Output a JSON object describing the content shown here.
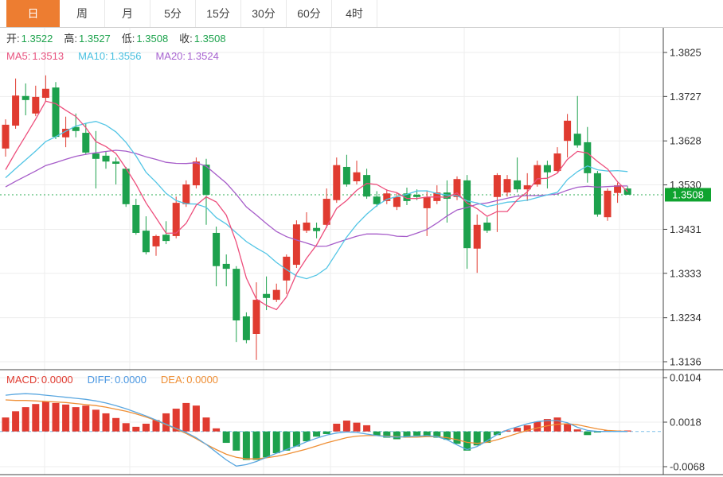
{
  "tabbar": {
    "tabs": [
      {
        "id": "day",
        "label": "日",
        "active": true
      },
      {
        "id": "week",
        "label": "周",
        "active": false
      },
      {
        "id": "month",
        "label": "月",
        "active": false
      },
      {
        "id": "5min",
        "label": "5分",
        "active": false
      },
      {
        "id": "15min",
        "label": "15分",
        "active": false
      },
      {
        "id": "30min",
        "label": "30分",
        "active": false
      },
      {
        "id": "60min",
        "label": "60分",
        "active": false
      },
      {
        "id": "4hour",
        "label": "4时",
        "active": false
      }
    ]
  },
  "main_overlay": {
    "ohlc": [
      {
        "label": "开:",
        "value": "1.3522",
        "color": "#1ba24b"
      },
      {
        "label": "高:",
        "value": "1.3527",
        "color": "#1ba24b"
      },
      {
        "label": "低:",
        "value": "1.3508",
        "color": "#1ba24b"
      },
      {
        "label": "收:",
        "value": "1.3508",
        "color": "#1ba24b"
      }
    ],
    "ma_legend": [
      {
        "label": "MA5:",
        "value": "1.3513",
        "color": "#e8537f"
      },
      {
        "label": "MA10:",
        "value": "1.3556",
        "color": "#49c0e0"
      },
      {
        "label": "MA20:",
        "value": "1.3524",
        "color": "#a763d0"
      }
    ]
  },
  "macd_overlay": [
    {
      "label": "MACD:",
      "value": "0.0000",
      "color": "#e03b30"
    },
    {
      "label": "DIFF:",
      "value": "0.0000",
      "color": "#4a97e2"
    },
    {
      "label": "DEA:",
      "value": "0.0000",
      "color": "#ef8f35"
    }
  ],
  "colors": {
    "up": "#e03b30",
    "down": "#1da14d",
    "badge": "#0fa32f",
    "ma5": "#ed4e7c",
    "ma10": "#52c5e5",
    "ma20": "#a65cc9",
    "diff": "#5aa7e0",
    "dea": "#ef8f35",
    "grid": "#ededed",
    "frame": "#444444",
    "axis_text": "#333333",
    "price_line": "#2fae54",
    "zero_line": "#7fc0e8",
    "tab_active": "#ed7d31"
  },
  "chart_data": {
    "type": "candlestick+macd",
    "title": "",
    "price_axis": {
      "ticks": [
        1.3825,
        1.3727,
        1.3628,
        1.353,
        1.3431,
        1.3333,
        1.3234,
        1.3136
      ],
      "range": [
        1.3136,
        1.3825
      ],
      "current_price": 1.3508,
      "current_price_label": "1.3508"
    },
    "macd_axis": {
      "ticks": [
        0.0104,
        0.0018,
        -0.0068
      ],
      "range": [
        -0.0068,
        0.0104
      ]
    },
    "x_gridlines": [
      56,
      163,
      331,
      415,
      583,
      778
    ],
    "legend": {
      "ma5": 1.3513,
      "ma10": 1.3556,
      "ma20": 1.3524,
      "macd": 0.0,
      "diff": 0.0,
      "dea": 0.0
    },
    "ohlc_latest": {
      "open": 1.3522,
      "high": 1.3527,
      "low": 1.3508,
      "close": 1.3508
    },
    "prehistory_closes": [
      1.347,
      1.348,
      1.349,
      1.3495,
      1.35,
      1.3505,
      1.351,
      1.3515,
      1.3515,
      1.352,
      1.352,
      1.3525,
      1.3525,
      1.353,
      1.353,
      1.353,
      1.3535,
      1.3535,
      1.354,
      1.3545
    ],
    "candles": [
      [
        1.3611,
        1.3676,
        1.3593,
        1.3664
      ],
      [
        1.3662,
        1.3767,
        1.3655,
        1.3729
      ],
      [
        1.3728,
        1.3756,
        1.3685,
        1.3719
      ],
      [
        1.3689,
        1.3751,
        1.3683,
        1.3726
      ],
      [
        1.3724,
        1.3774,
        1.3717,
        1.3744
      ],
      [
        1.3747,
        1.3759,
        1.3632,
        1.3637
      ],
      [
        1.3636,
        1.3682,
        1.3614,
        1.3655
      ],
      [
        1.3659,
        1.3689,
        1.3636,
        1.365
      ],
      [
        1.3646,
        1.3667,
        1.3597,
        1.3602
      ],
      [
        1.36,
        1.365,
        1.3522,
        1.3588
      ],
      [
        1.3595,
        1.3605,
        1.3566,
        1.3582
      ],
      [
        1.3582,
        1.3591,
        1.3531,
        1.3577
      ],
      [
        1.3566,
        1.357,
        1.3481,
        1.3487
      ],
      [
        1.3485,
        1.3499,
        1.3419,
        1.3423
      ],
      [
        1.3428,
        1.346,
        1.3375,
        1.338
      ],
      [
        1.3393,
        1.3419,
        1.3372,
        1.3416
      ],
      [
        1.3419,
        1.3449,
        1.3398,
        1.3405
      ],
      [
        1.3416,
        1.3504,
        1.3411,
        1.349
      ],
      [
        1.3487,
        1.354,
        1.3481,
        1.3531
      ],
      [
        1.3529,
        1.3591,
        1.3522,
        1.3582
      ],
      [
        1.3575,
        1.3588,
        1.3441,
        1.3508
      ],
      [
        1.3423,
        1.3437,
        1.3304,
        1.3349
      ],
      [
        1.3354,
        1.3375,
        1.3304,
        1.3343
      ],
      [
        1.3343,
        1.3349,
        1.318,
        1.3228
      ],
      [
        1.3237,
        1.3246,
        1.3177,
        1.3184
      ],
      [
        1.3198,
        1.3313,
        1.314,
        1.3274
      ],
      [
        1.3287,
        1.3326,
        1.3251,
        1.3278
      ],
      [
        1.3274,
        1.331,
        1.3269,
        1.3296
      ],
      [
        1.3317,
        1.3375,
        1.3287,
        1.337
      ],
      [
        1.3352,
        1.3451,
        1.3345,
        1.3442
      ],
      [
        1.3428,
        1.3469,
        1.3423,
        1.3446
      ],
      [
        1.3434,
        1.3446,
        1.3411,
        1.3427
      ],
      [
        1.3441,
        1.3522,
        1.3434,
        1.3499
      ],
      [
        1.3496,
        1.3591,
        1.349,
        1.3574
      ],
      [
        1.357,
        1.3597,
        1.3526,
        1.3531
      ],
      [
        1.3538,
        1.3584,
        1.3531,
        1.3558
      ],
      [
        1.3552,
        1.3566,
        1.3499,
        1.3504
      ],
      [
        1.3504,
        1.3516,
        1.3481,
        1.3487
      ],
      [
        1.3494,
        1.352,
        1.3487,
        1.3511
      ],
      [
        1.3481,
        1.3513,
        1.3474,
        1.3503
      ],
      [
        1.3511,
        1.3524,
        1.3485,
        1.3494
      ],
      [
        1.3508,
        1.352,
        1.3496,
        1.3503
      ],
      [
        1.3478,
        1.3517,
        1.3416,
        1.3503
      ],
      [
        1.3494,
        1.3529,
        1.3487,
        1.3513
      ],
      [
        1.3513,
        1.354,
        1.3446,
        1.3499
      ],
      [
        1.3503,
        1.3549,
        1.3496,
        1.3543
      ],
      [
        1.354,
        1.3552,
        1.3343,
        1.3389
      ],
      [
        1.3388,
        1.3464,
        1.3334,
        1.3441
      ],
      [
        1.3446,
        1.3458,
        1.3423,
        1.3428
      ],
      [
        1.3503,
        1.3556,
        1.3425,
        1.3552
      ],
      [
        1.3513,
        1.3552,
        1.3504,
        1.3543
      ],
      [
        1.354,
        1.3591,
        1.3513,
        1.352
      ],
      [
        1.352,
        1.3556,
        1.3494,
        1.3529
      ],
      [
        1.3531,
        1.3584,
        1.3526,
        1.3574
      ],
      [
        1.3574,
        1.3584,
        1.3522,
        1.3558
      ],
      [
        1.3561,
        1.3614,
        1.3558,
        1.36
      ],
      [
        1.3628,
        1.3688,
        1.3591,
        1.3673
      ],
      [
        1.3644,
        1.3728,
        1.3613,
        1.3618
      ],
      [
        1.3625,
        1.3659,
        1.3535,
        1.3556
      ],
      [
        1.3556,
        1.3561,
        1.3459,
        1.3464
      ],
      [
        1.3458,
        1.3522,
        1.345,
        1.3517
      ],
      [
        1.3512,
        1.3535,
        1.349,
        1.3529
      ],
      [
        1.3522,
        1.3527,
        1.3508,
        1.3508
      ]
    ],
    "macd": {
      "histogram": [
        0.0027,
        0.0039,
        0.0047,
        0.0053,
        0.0058,
        0.0055,
        0.0052,
        0.0047,
        0.005,
        0.0042,
        0.0035,
        0.0026,
        0.0016,
        0.0009,
        0.0015,
        0.0022,
        0.0035,
        0.0044,
        0.0055,
        0.005,
        0.0027,
        0.0006,
        -0.0022,
        -0.0037,
        -0.0055,
        -0.0055,
        -0.005,
        -0.0042,
        -0.0037,
        -0.0029,
        -0.0019,
        -0.001,
        -0.0005,
        0.0015,
        0.0021,
        0.0017,
        0.0012,
        -0.0008,
        -0.0012,
        -0.0015,
        -0.0012,
        -0.0008,
        -0.001,
        -0.0012,
        -0.0016,
        -0.0024,
        -0.0037,
        -0.0027,
        -0.0022,
        -0.0007,
        0.0002,
        0.0007,
        0.0012,
        0.0019,
        0.0024,
        0.0027,
        0.0015,
        0.0004,
        -0.0007,
        -0.0002,
        0.0001,
        0.0,
        0.0
      ],
      "diff": [
        0.007,
        0.0072,
        0.0073,
        0.0072,
        0.007,
        0.0068,
        0.0066,
        0.0064,
        0.0062,
        0.0059,
        0.0055,
        0.005,
        0.0044,
        0.0037,
        0.003,
        0.0022,
        0.0014,
        0.0006,
        -0.0002,
        -0.0012,
        -0.0025,
        -0.004,
        -0.0055,
        -0.0067,
        -0.0064,
        -0.0058,
        -0.005,
        -0.0042,
        -0.0035,
        -0.0028,
        -0.002,
        -0.0013,
        -0.0007,
        -0.0003,
        -0.0001,
        -0.0002,
        -0.0005,
        -0.0008,
        -0.001,
        -0.0011,
        -0.001,
        -0.0009,
        -0.0008,
        -0.001,
        -0.0016,
        -0.0026,
        -0.0035,
        -0.0029,
        -0.0018,
        -0.0006,
        0.0003,
        0.0009,
        0.0015,
        0.0019,
        0.0021,
        0.0021,
        0.0017,
        0.0008,
        0.0002,
        0.0,
        0.0,
        0.0,
        0.0
      ],
      "dea": [
        0.0061,
        0.006,
        0.006,
        0.0059,
        0.0058,
        0.0057,
        0.0056,
        0.0054,
        0.0052,
        0.005,
        0.0047,
        0.0043,
        0.0039,
        0.0034,
        0.0028,
        0.0021,
        0.0013,
        0.0005,
        -0.0004,
        -0.0014,
        -0.0025,
        -0.0035,
        -0.0044,
        -0.005,
        -0.0053,
        -0.0053,
        -0.0051,
        -0.0048,
        -0.0044,
        -0.0039,
        -0.0034,
        -0.0028,
        -0.0022,
        -0.0017,
        -0.0012,
        -0.0009,
        -0.0008,
        -0.0008,
        -0.0009,
        -0.001,
        -0.0011,
        -0.0011,
        -0.001,
        -0.001,
        -0.0012,
        -0.0016,
        -0.0021,
        -0.0023,
        -0.0021,
        -0.0016,
        -0.001,
        -0.0004,
        0.0002,
        0.0007,
        0.0011,
        0.0014,
        0.0015,
        0.0013,
        0.0009,
        0.0005,
        0.0002,
        0.0001,
        0.0
      ]
    }
  }
}
